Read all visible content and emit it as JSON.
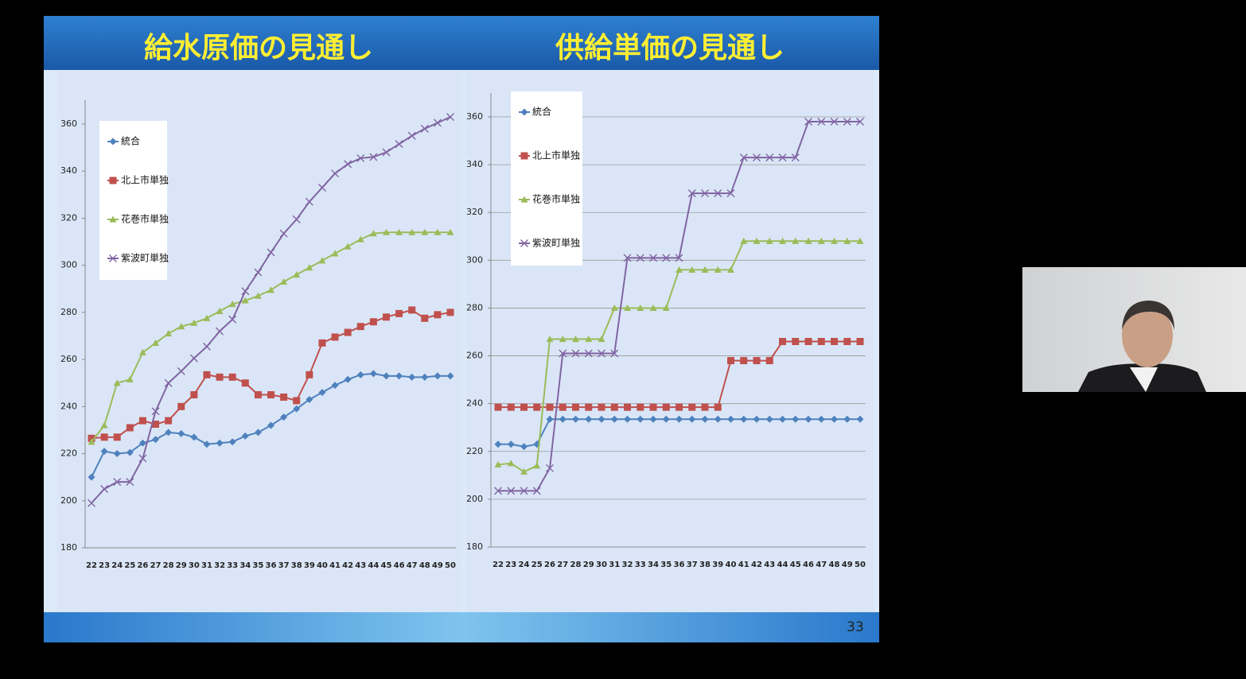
{
  "chart_data": [
    {
      "type": "line",
      "title": "給水原価の見通し",
      "grid": false,
      "legend": "upper-left",
      "categories": [
        "22",
        "23",
        "24",
        "25",
        "26",
        "27",
        "28",
        "29",
        "30",
        "31",
        "32",
        "33",
        "34",
        "35",
        "36",
        "37",
        "38",
        "39",
        "40",
        "41",
        "42",
        "43",
        "44",
        "45",
        "46",
        "47",
        "48",
        "49",
        "50"
      ],
      "ylim": [
        180,
        360
      ],
      "yticks": [
        180,
        200,
        220,
        240,
        260,
        280,
        300,
        320,
        340,
        360
      ],
      "series": [
        {
          "name": "統合",
          "color": "#4f81bd",
          "marker": "diamond",
          "values": [
            210,
            221,
            220,
            220.5,
            224.5,
            226,
            229,
            228.5,
            227,
            224,
            224.5,
            225,
            227.5,
            229,
            232,
            235.5,
            239,
            243,
            246,
            249,
            251.5,
            253.5,
            254,
            253,
            253,
            252.5,
            252.5,
            253,
            253
          ]
        },
        {
          "name": "北上市単独",
          "color": "#c0504d",
          "marker": "square",
          "values": [
            226.5,
            227,
            227,
            231,
            234,
            232.5,
            234,
            240,
            245,
            253.5,
            252.5,
            252.5,
            250,
            245,
            245,
            244,
            242.5,
            253.5,
            267,
            269.5,
            271.5,
            274,
            276,
            278,
            279.5,
            281,
            277.5,
            279,
            280
          ]
        },
        {
          "name": "花巻市単独",
          "color": "#9bbb59",
          "marker": "triangle",
          "values": [
            225,
            232,
            250,
            251.5,
            263,
            267,
            271,
            274,
            275.5,
            277.5,
            280.5,
            283.5,
            285,
            287,
            289.5,
            293,
            296,
            299,
            302,
            305,
            308,
            311,
            313.5,
            314,
            314,
            314,
            314,
            314,
            314
          ]
        },
        {
          "name": "紫波町単独",
          "color": "#8064a2",
          "marker": "x",
          "values": [
            199,
            205,
            208,
            208,
            218,
            238,
            250,
            255,
            260.5,
            265.5,
            272,
            277,
            289,
            297,
            305.5,
            313.5,
            319.5,
            327,
            333,
            339,
            343,
            345.5,
            346,
            348,
            351.5,
            355,
            358,
            360.5,
            363
          ]
        }
      ]
    },
    {
      "type": "line",
      "title": "供給単価の見通し",
      "grid": true,
      "legend": "upper-left",
      "categories": [
        "22",
        "23",
        "24",
        "25",
        "26",
        "27",
        "28",
        "29",
        "30",
        "31",
        "32",
        "33",
        "34",
        "35",
        "36",
        "37",
        "38",
        "39",
        "40",
        "41",
        "42",
        "43",
        "44",
        "45",
        "46",
        "47",
        "48",
        "49",
        "50"
      ],
      "ylim": [
        180,
        360
      ],
      "yticks": [
        180,
        200,
        220,
        240,
        260,
        280,
        300,
        320,
        340,
        360
      ],
      "series": [
        {
          "name": "統合",
          "color": "#4f81bd",
          "marker": "diamond",
          "values": [
            223,
            223,
            222,
            223,
            233.5,
            233.5,
            233.5,
            233.5,
            233.5,
            233.5,
            233.5,
            233.5,
            233.5,
            233.5,
            233.5,
            233.5,
            233.5,
            233.5,
            233.5,
            233.5,
            233.5,
            233.5,
            233.5,
            233.5,
            233.5,
            233.5,
            233.5,
            233.5,
            233.5
          ]
        },
        {
          "name": "北上市単独",
          "color": "#c0504d",
          "marker": "square",
          "values": [
            238.5,
            238.5,
            238.5,
            238.5,
            238.5,
            238.5,
            238.5,
            238.5,
            238.5,
            238.5,
            238.5,
            238.5,
            238.5,
            238.5,
            238.5,
            238.5,
            238.5,
            238.5,
            258,
            258,
            258,
            258,
            266,
            266,
            266,
            266,
            266,
            266,
            266
          ]
        },
        {
          "name": "花巻市単独",
          "color": "#9bbb59",
          "marker": "triangle",
          "values": [
            214.5,
            215,
            211.5,
            214,
            267,
            267,
            267,
            267,
            267,
            280,
            280,
            280,
            280,
            280,
            296,
            296,
            296,
            296,
            296,
            308,
            308,
            308,
            308,
            308,
            308,
            308,
            308,
            308,
            308
          ]
        },
        {
          "name": "紫波町単独",
          "color": "#8064a2",
          "marker": "x",
          "values": [
            203.5,
            203.5,
            203.5,
            203.5,
            213,
            261,
            261,
            261,
            261,
            261,
            301,
            301,
            301,
            301,
            301,
            328,
            328,
            328,
            328,
            343,
            343,
            343,
            343,
            343,
            358,
            358,
            358,
            358,
            358
          ]
        }
      ]
    }
  ],
  "page_number": "33"
}
